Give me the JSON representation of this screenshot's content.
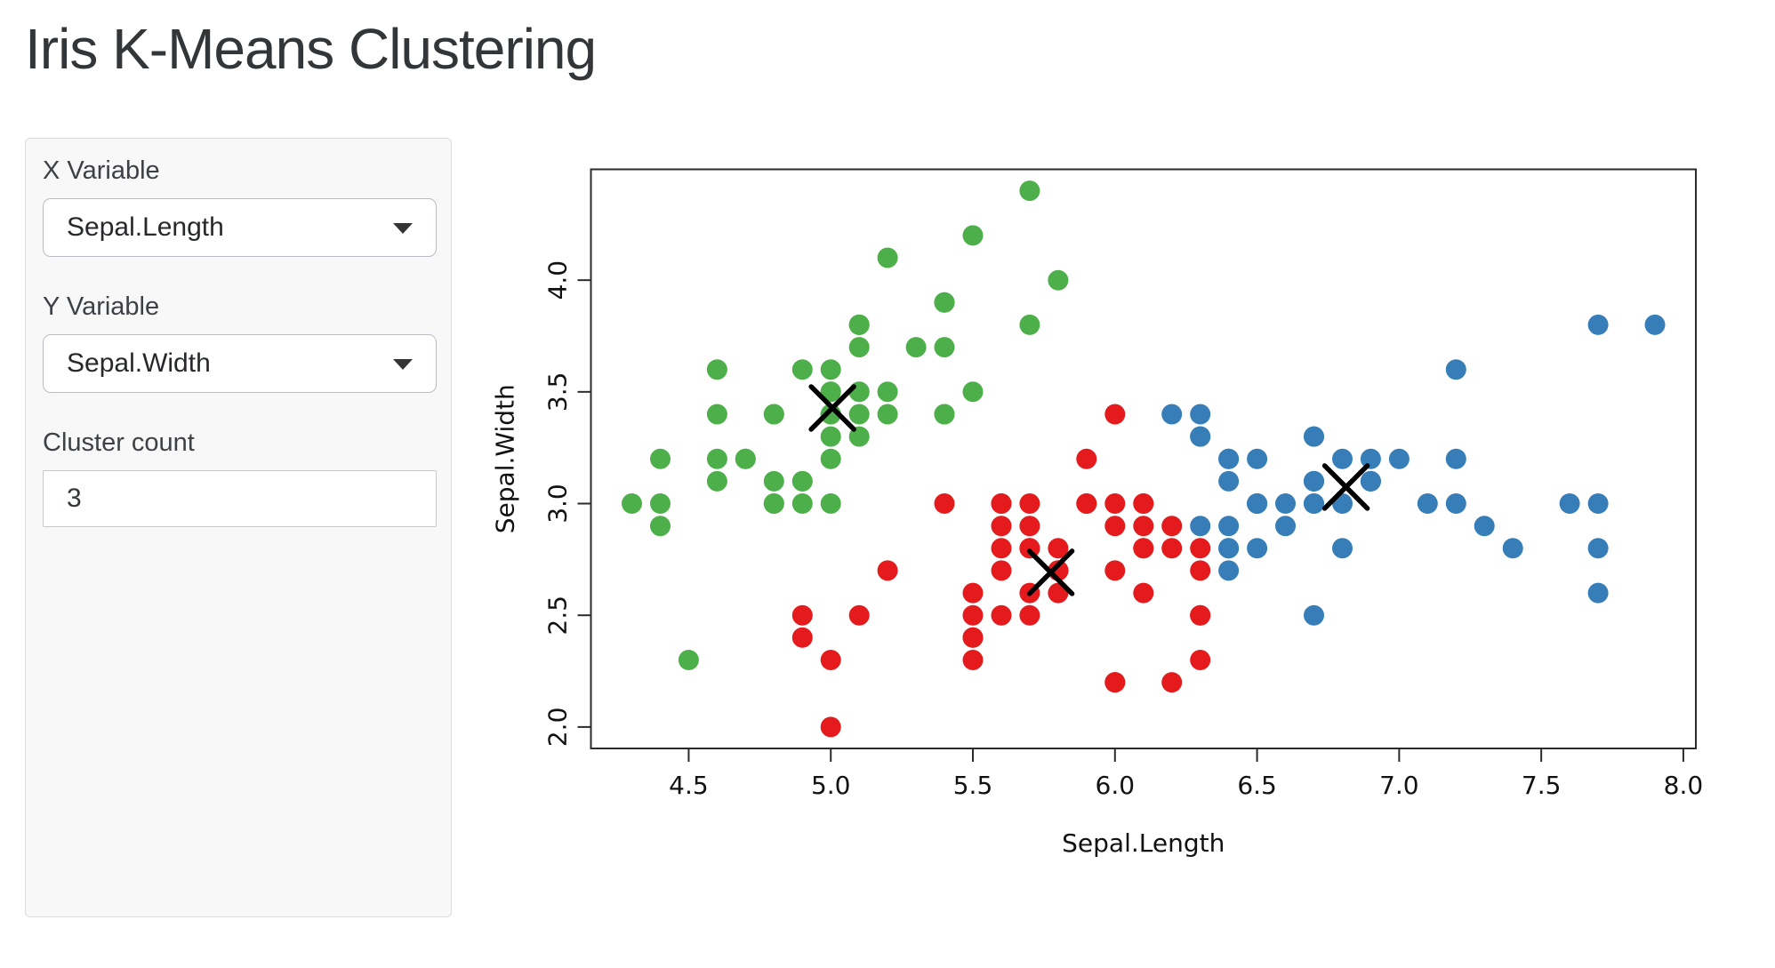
{
  "page": {
    "title": "Iris K-Means Clustering"
  },
  "sidebar": {
    "x_variable": {
      "label": "X Variable",
      "value": "Sepal.Length"
    },
    "y_variable": {
      "label": "Y Variable",
      "value": "Sepal.Width"
    },
    "cluster_count": {
      "label": "Cluster count",
      "value": "3"
    }
  },
  "chart_data": {
    "type": "scatter",
    "title": "",
    "xlabel": "Sepal.Length",
    "ylabel": "Sepal.Width",
    "xlim": [
      4.156,
      8.044
    ],
    "ylim": [
      1.904,
      4.496
    ],
    "x_tick_labels": [
      "4.5",
      "5.0",
      "5.5",
      "6.0",
      "6.5",
      "7.0",
      "7.5",
      "8.0"
    ],
    "y_tick_labels": [
      "2.0",
      "2.5",
      "3.0",
      "3.5",
      "4.0"
    ],
    "grid": false,
    "legend": "none",
    "cluster_colors": {
      "1": "#E41A1C",
      "2": "#377EB8",
      "3": "#4DAF4A"
    },
    "center_marker_color": "#000000",
    "points": [
      [
        5.1,
        3.5,
        3
      ],
      [
        4.9,
        3.0,
        3
      ],
      [
        4.7,
        3.2,
        3
      ],
      [
        4.6,
        3.1,
        3
      ],
      [
        5.0,
        3.6,
        3
      ],
      [
        5.4,
        3.9,
        3
      ],
      [
        4.6,
        3.4,
        3
      ],
      [
        5.0,
        3.4,
        3
      ],
      [
        4.4,
        2.9,
        3
      ],
      [
        4.9,
        3.1,
        3
      ],
      [
        5.4,
        3.7,
        3
      ],
      [
        4.8,
        3.4,
        3
      ],
      [
        4.8,
        3.0,
        3
      ],
      [
        4.3,
        3.0,
        3
      ],
      [
        5.8,
        4.0,
        3
      ],
      [
        5.7,
        4.4,
        3
      ],
      [
        5.4,
        3.9,
        3
      ],
      [
        5.1,
        3.5,
        3
      ],
      [
        5.7,
        3.8,
        3
      ],
      [
        5.1,
        3.8,
        3
      ],
      [
        5.4,
        3.4,
        3
      ],
      [
        5.1,
        3.7,
        3
      ],
      [
        4.6,
        3.6,
        3
      ],
      [
        5.1,
        3.3,
        3
      ],
      [
        4.8,
        3.4,
        3
      ],
      [
        5.0,
        3.0,
        3
      ],
      [
        5.0,
        3.4,
        3
      ],
      [
        5.2,
        3.5,
        3
      ],
      [
        5.2,
        3.4,
        3
      ],
      [
        4.7,
        3.2,
        3
      ],
      [
        4.8,
        3.1,
        3
      ],
      [
        5.4,
        3.4,
        3
      ],
      [
        5.2,
        4.1,
        3
      ],
      [
        5.5,
        4.2,
        3
      ],
      [
        4.9,
        3.1,
        3
      ],
      [
        5.0,
        3.2,
        3
      ],
      [
        5.5,
        3.5,
        3
      ],
      [
        4.9,
        3.6,
        3
      ],
      [
        4.4,
        3.0,
        3
      ],
      [
        5.1,
        3.4,
        3
      ],
      [
        5.0,
        3.5,
        3
      ],
      [
        4.5,
        2.3,
        3
      ],
      [
        4.4,
        3.2,
        3
      ],
      [
        5.0,
        3.5,
        3
      ],
      [
        5.1,
        3.8,
        3
      ],
      [
        4.8,
        3.0,
        3
      ],
      [
        5.1,
        3.8,
        3
      ],
      [
        4.6,
        3.2,
        3
      ],
      [
        5.3,
        3.7,
        3
      ],
      [
        5.0,
        3.3,
        3
      ],
      [
        7.0,
        3.2,
        2
      ],
      [
        6.4,
        3.2,
        2
      ],
      [
        6.9,
        3.1,
        2
      ],
      [
        5.5,
        2.3,
        1
      ],
      [
        6.5,
        2.8,
        2
      ],
      [
        5.7,
        2.8,
        1
      ],
      [
        6.3,
        3.3,
        2
      ],
      [
        4.9,
        2.4,
        1
      ],
      [
        6.6,
        2.9,
        2
      ],
      [
        5.2,
        2.7,
        1
      ],
      [
        5.0,
        2.0,
        1
      ],
      [
        5.9,
        3.0,
        1
      ],
      [
        6.0,
        2.2,
        1
      ],
      [
        6.1,
        2.9,
        1
      ],
      [
        5.6,
        2.9,
        1
      ],
      [
        6.7,
        3.1,
        2
      ],
      [
        5.6,
        3.0,
        1
      ],
      [
        5.8,
        2.7,
        1
      ],
      [
        6.2,
        2.2,
        1
      ],
      [
        5.6,
        2.5,
        1
      ],
      [
        5.9,
        3.2,
        1
      ],
      [
        6.1,
        2.8,
        1
      ],
      [
        6.3,
        2.5,
        1
      ],
      [
        6.1,
        2.8,
        1
      ],
      [
        6.4,
        2.9,
        2
      ],
      [
        6.6,
        3.0,
        2
      ],
      [
        6.8,
        2.8,
        2
      ],
      [
        6.7,
        3.0,
        2
      ],
      [
        6.0,
        2.9,
        1
      ],
      [
        5.7,
        2.6,
        1
      ],
      [
        5.5,
        2.4,
        1
      ],
      [
        5.5,
        2.4,
        1
      ],
      [
        5.8,
        2.7,
        1
      ],
      [
        6.0,
        2.7,
        1
      ],
      [
        5.4,
        3.0,
        1
      ],
      [
        6.0,
        3.4,
        1
      ],
      [
        6.7,
        3.1,
        2
      ],
      [
        6.3,
        2.3,
        1
      ],
      [
        5.6,
        3.0,
        1
      ],
      [
        5.5,
        2.5,
        1
      ],
      [
        5.5,
        2.6,
        1
      ],
      [
        6.1,
        3.0,
        1
      ],
      [
        5.8,
        2.6,
        1
      ],
      [
        5.0,
        2.3,
        1
      ],
      [
        5.6,
        2.7,
        1
      ],
      [
        5.7,
        3.0,
        1
      ],
      [
        5.7,
        2.9,
        1
      ],
      [
        6.2,
        2.9,
        1
      ],
      [
        5.1,
        2.5,
        1
      ],
      [
        5.7,
        2.8,
        1
      ],
      [
        6.3,
        3.3,
        2
      ],
      [
        5.8,
        2.7,
        1
      ],
      [
        7.1,
        3.0,
        2
      ],
      [
        6.3,
        2.9,
        2
      ],
      [
        6.5,
        3.0,
        2
      ],
      [
        7.6,
        3.0,
        2
      ],
      [
        4.9,
        2.5,
        1
      ],
      [
        7.3,
        2.9,
        2
      ],
      [
        6.7,
        2.5,
        2
      ],
      [
        7.2,
        3.6,
        2
      ],
      [
        6.5,
        3.2,
        2
      ],
      [
        6.4,
        2.7,
        2
      ],
      [
        6.8,
        3.0,
        2
      ],
      [
        5.7,
        2.5,
        1
      ],
      [
        5.8,
        2.8,
        1
      ],
      [
        6.4,
        3.2,
        2
      ],
      [
        6.5,
        3.0,
        2
      ],
      [
        7.7,
        3.8,
        2
      ],
      [
        7.7,
        2.6,
        2
      ],
      [
        6.0,
        2.2,
        1
      ],
      [
        6.9,
        3.2,
        2
      ],
      [
        5.6,
        2.8,
        1
      ],
      [
        7.7,
        2.8,
        2
      ],
      [
        6.3,
        2.7,
        1
      ],
      [
        6.7,
        3.3,
        2
      ],
      [
        7.2,
        3.2,
        2
      ],
      [
        6.2,
        2.8,
        1
      ],
      [
        6.1,
        3.0,
        1
      ],
      [
        6.4,
        2.8,
        2
      ],
      [
        7.2,
        3.0,
        2
      ],
      [
        7.4,
        2.8,
        2
      ],
      [
        7.9,
        3.8,
        2
      ],
      [
        6.4,
        2.8,
        2
      ],
      [
        6.3,
        2.8,
        1
      ],
      [
        6.1,
        2.6,
        1
      ],
      [
        7.7,
        3.0,
        2
      ],
      [
        6.3,
        3.4,
        2
      ],
      [
        6.4,
        3.1,
        2
      ],
      [
        6.0,
        3.0,
        1
      ],
      [
        6.9,
        3.1,
        2
      ],
      [
        6.7,
        3.1,
        2
      ],
      [
        6.9,
        3.1,
        2
      ],
      [
        5.8,
        2.7,
        1
      ],
      [
        6.8,
        3.2,
        2
      ],
      [
        6.7,
        3.3,
        2
      ],
      [
        6.7,
        3.0,
        2
      ],
      [
        6.3,
        2.5,
        1
      ],
      [
        6.5,
        3.0,
        2
      ],
      [
        6.2,
        3.4,
        2
      ],
      [
        5.9,
        3.0,
        1
      ]
    ],
    "centers": [
      [
        5.006,
        3.428,
        3
      ],
      [
        5.774,
        2.692,
        1
      ],
      [
        6.813,
        3.074,
        2
      ]
    ]
  }
}
